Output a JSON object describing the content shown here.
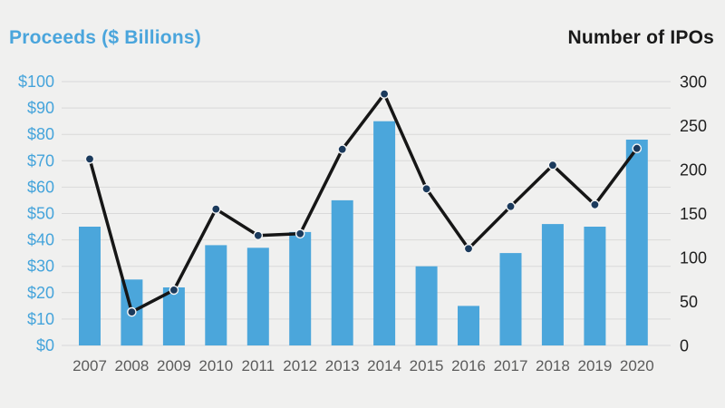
{
  "chart_data": {
    "type": "bar",
    "subtype": "bar+line dual axis",
    "title": "",
    "categories": [
      "2007",
      "2008",
      "2009",
      "2010",
      "2011",
      "2012",
      "2013",
      "2014",
      "2015",
      "2016",
      "2017",
      "2018",
      "2019",
      "2020"
    ],
    "series": [
      {
        "name": "Proceeds ($ Billions)",
        "type": "bar",
        "axis": "left",
        "values": [
          45,
          25,
          22,
          38,
          37,
          43,
          55,
          85,
          30,
          15,
          35,
          46,
          45,
          78
        ]
      },
      {
        "name": "Number of IPOs",
        "type": "line",
        "axis": "right",
        "values": [
          212,
          38,
          63,
          155,
          125,
          127,
          223,
          286,
          178,
          110,
          158,
          205,
          160,
          224
        ]
      }
    ],
    "left_axis": {
      "title": "Proceeds ($ Billions)",
      "min": 0,
      "max": 100,
      "tick_step": 10,
      "tick_prefix": "$"
    },
    "right_axis": {
      "title": "Number of IPOs",
      "min": 0,
      "max": 300,
      "tick_step": 50,
      "tick_prefix": ""
    },
    "grid": true,
    "legend": "none"
  },
  "colors": {
    "background": "#F0F0EF",
    "bar": "#4BA6DB",
    "line": "#161616",
    "marker_fill": "#1B3A5C",
    "marker_ring": "#F5F5F5",
    "gridline": "#D9D9D9",
    "left_axis_text": "#45A4DB",
    "left_title_text": "#4AA5DC",
    "right_axis_text": "#1F1F1F",
    "right_title_text": "#1A1A1A",
    "year_label_text": "#5B5B5B"
  }
}
